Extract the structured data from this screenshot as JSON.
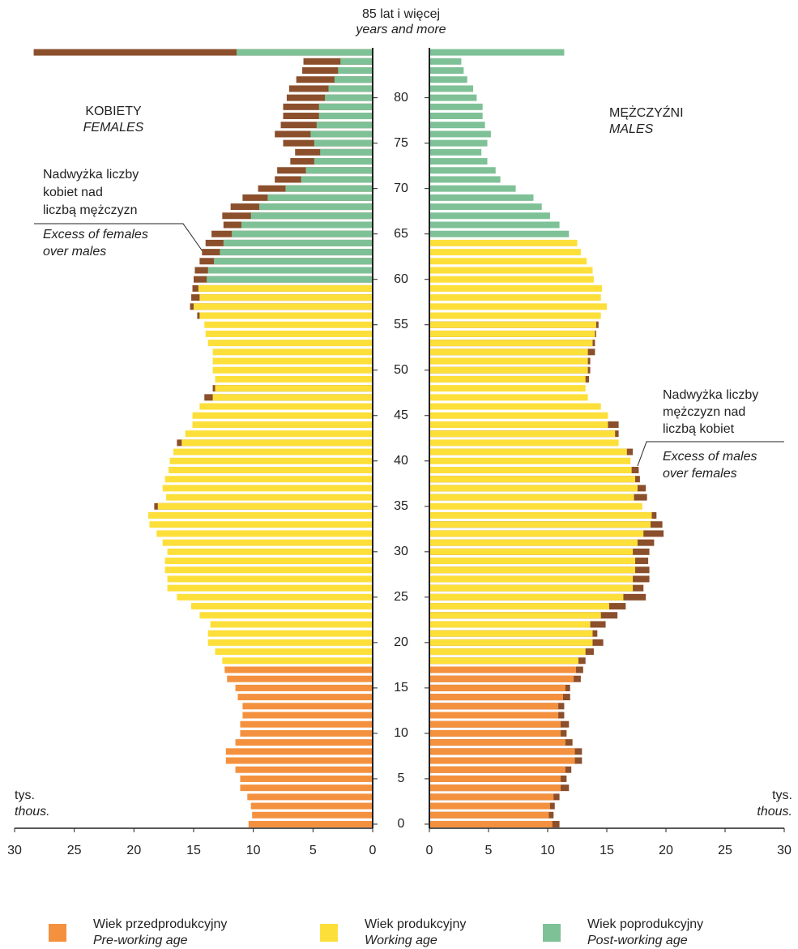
{
  "chart_data": {
    "type": "pyramid",
    "top_label": [
      "85 lat i więcej",
      "years and more"
    ],
    "females": {
      "label": [
        "KOBIETY",
        "FEMALES"
      ],
      "group_starts": [
        0,
        18,
        60
      ],
      "values": [
        10.4,
        10.1,
        10.2,
        10.5,
        11.1,
        11.1,
        11.5,
        12.3,
        12.3,
        11.5,
        11.1,
        11.1,
        10.9,
        10.9,
        11.3,
        11.5,
        12.2,
        12.4,
        12.6,
        13.2,
        13.8,
        13.8,
        13.6,
        14.5,
        15.2,
        16.4,
        17.2,
        17.2,
        17.4,
        17.4,
        17.2,
        17.6,
        18.1,
        18.7,
        18.8,
        18.3,
        17.3,
        17.6,
        17.4,
        17.1,
        17.0,
        16.7,
        16.4,
        15.7,
        15.1,
        15.1,
        14.5,
        14.1,
        13.4,
        13.2,
        13.4,
        13.4,
        13.4,
        13.8,
        14.0,
        14.1,
        14.7,
        15.3,
        15.2,
        15.1,
        15.0,
        14.9,
        14.5,
        14.3,
        14.0,
        13.5,
        12.5,
        12.6,
        11.9,
        10.9,
        9.6,
        8.2,
        8.0,
        6.9,
        6.5,
        7.5,
        8.2,
        7.7,
        7.5,
        7.5,
        7.2,
        7.0,
        6.4,
        5.9,
        5.8,
        28.4
      ]
    },
    "males": {
      "label": [
        "MĘŻCZYŹNI",
        "MALES"
      ],
      "group_starts": [
        0,
        18,
        65
      ],
      "values": [
        11.0,
        10.5,
        10.6,
        11.0,
        11.8,
        11.6,
        12.0,
        12.9,
        12.9,
        12.1,
        11.6,
        11.8,
        11.4,
        11.4,
        11.9,
        11.9,
        12.8,
        13.0,
        13.2,
        13.9,
        14.7,
        14.2,
        14.9,
        15.9,
        16.6,
        18.3,
        18.1,
        18.6,
        18.6,
        18.5,
        18.6,
        19.0,
        19.8,
        19.7,
        19.2,
        18.0,
        18.4,
        18.3,
        17.8,
        17.7,
        17.0,
        17.2,
        16.0,
        16.0,
        16.0,
        15.1,
        14.5,
        13.4,
        13.2,
        13.5,
        13.6,
        13.6,
        14.0,
        14.0,
        14.1,
        14.3,
        14.5,
        15.0,
        14.5,
        14.6,
        13.9,
        13.8,
        13.3,
        12.8,
        12.5,
        11.8,
        11.0,
        10.2,
        9.5,
        8.8,
        7.3,
        6.0,
        5.6,
        4.9,
        4.4,
        4.9,
        5.2,
        4.7,
        4.5,
        4.5,
        4.0,
        3.7,
        3.2,
        2.9,
        2.7,
        11.4
      ]
    },
    "excess_color": "#8b4f2c",
    "groups": [
      {
        "name": "Wiek przedprodukcyjny",
        "name_en": "Pre-working age",
        "color": "#f4913f"
      },
      {
        "name": "Wiek produkcyjny",
        "name_en": "Working age",
        "color": "#fddf3a"
      },
      {
        "name": "Wiek poprodukcyjny",
        "name_en": "Post-working age",
        "color": "#7fc197"
      }
    ],
    "ylim": [
      -0.45,
      85.5
    ],
    "yticks": [
      0,
      5,
      10,
      15,
      20,
      25,
      30,
      35,
      40,
      45,
      50,
      55,
      60,
      65,
      70,
      75,
      80
    ],
    "xlim": [
      0,
      30
    ],
    "xticks": [
      0,
      5,
      10,
      15,
      20,
      25,
      30
    ],
    "unit_label": [
      "tys.",
      "thous."
    ],
    "annotations": [
      {
        "text": [
          "Nadwyżka liczby",
          "kobiet nad",
          "liczbą mężczyzn"
        ],
        "text_en": [
          "Excess of females",
          "over males"
        ]
      },
      {
        "text": [
          "Nadwyżka liczby",
          "mężczyzn nad",
          "liczbą kobiet"
        ],
        "text_en": [
          "Excess of males",
          "over females"
        ]
      }
    ]
  }
}
